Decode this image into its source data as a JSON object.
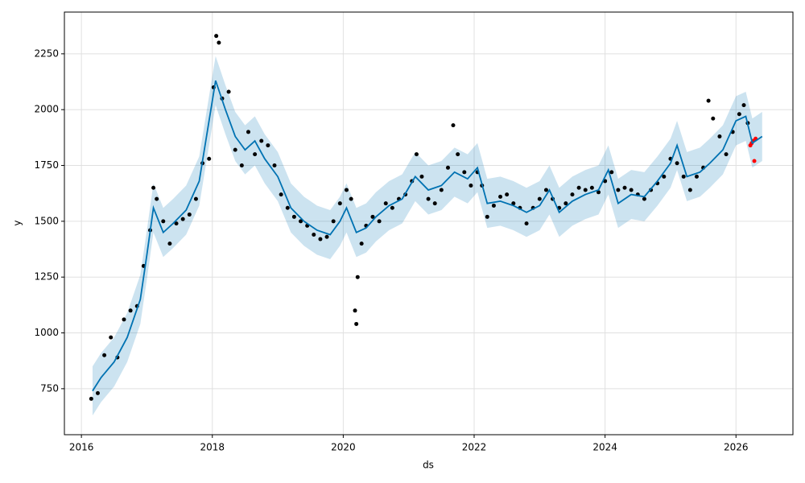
{
  "chart_data": {
    "type": "forecast",
    "x_label": "ds",
    "y_label": "y",
    "xlim": [
      2015.74,
      2026.87
    ],
    "ylim": [
      544,
      2437
    ],
    "xticks": [
      2016,
      2018,
      2020,
      2022,
      2024,
      2026
    ],
    "yticks": [
      750,
      1000,
      1250,
      1500,
      1750,
      2000,
      2250
    ],
    "grid": true,
    "forecast": {
      "color": "#0072B2",
      "band_color": "#0072B2",
      "x": [
        2016.17,
        2016.3,
        2016.5,
        2016.7,
        2016.9,
        2017.0,
        2017.1,
        2017.25,
        2017.4,
        2017.6,
        2017.8,
        2017.95,
        2018.05,
        2018.2,
        2018.35,
        2018.5,
        2018.65,
        2018.8,
        2019.0,
        2019.2,
        2019.4,
        2019.6,
        2019.8,
        2019.95,
        2020.05,
        2020.2,
        2020.35,
        2020.5,
        2020.7,
        2020.9,
        2021.1,
        2021.3,
        2021.5,
        2021.7,
        2021.9,
        2022.05,
        2022.2,
        2022.4,
        2022.6,
        2022.8,
        2023.0,
        2023.15,
        2023.3,
        2023.5,
        2023.7,
        2023.9,
        2024.05,
        2024.2,
        2024.4,
        2024.6,
        2024.8,
        2025.0,
        2025.1,
        2025.25,
        2025.45,
        2025.6,
        2025.8,
        2026.0,
        2026.15,
        2026.25,
        2026.4
      ],
      "values": [
        740,
        800,
        870,
        980,
        1150,
        1350,
        1560,
        1450,
        1490,
        1550,
        1680,
        1950,
        2130,
        2000,
        1880,
        1820,
        1860,
        1780,
        1700,
        1560,
        1500,
        1460,
        1440,
        1500,
        1560,
        1450,
        1470,
        1520,
        1570,
        1600,
        1700,
        1640,
        1660,
        1720,
        1690,
        1740,
        1580,
        1590,
        1570,
        1540,
        1570,
        1640,
        1540,
        1590,
        1620,
        1640,
        1730,
        1580,
        1620,
        1610,
        1680,
        1760,
        1840,
        1700,
        1720,
        1760,
        1820,
        1950,
        1970,
        1850,
        1880
      ],
      "lower": [
        630,
        690,
        760,
        870,
        1040,
        1240,
        1450,
        1340,
        1380,
        1440,
        1570,
        1840,
        2020,
        1890,
        1770,
        1710,
        1750,
        1670,
        1590,
        1450,
        1390,
        1350,
        1330,
        1390,
        1450,
        1340,
        1360,
        1410,
        1460,
        1490,
        1590,
        1530,
        1550,
        1610,
        1580,
        1630,
        1470,
        1480,
        1460,
        1430,
        1460,
        1530,
        1430,
        1480,
        1510,
        1530,
        1620,
        1470,
        1510,
        1500,
        1570,
        1650,
        1730,
        1590,
        1610,
        1650,
        1710,
        1840,
        1860,
        1740,
        1770
      ],
      "upper": [
        850,
        910,
        980,
        1090,
        1260,
        1460,
        1670,
        1560,
        1600,
        1660,
        1790,
        2060,
        2240,
        2110,
        1990,
        1930,
        1970,
        1890,
        1810,
        1670,
        1610,
        1570,
        1550,
        1610,
        1670,
        1560,
        1580,
        1630,
        1680,
        1710,
        1810,
        1750,
        1770,
        1830,
        1800,
        1850,
        1690,
        1700,
        1680,
        1650,
        1680,
        1750,
        1650,
        1700,
        1730,
        1750,
        1840,
        1690,
        1730,
        1720,
        1790,
        1870,
        1950,
        1810,
        1830,
        1870,
        1930,
        2060,
        2080,
        1960,
        1990
      ]
    },
    "history": {
      "color": "#000000",
      "x": [
        2016.15,
        2016.25,
        2016.35,
        2016.45,
        2016.55,
        2016.65,
        2016.75,
        2016.85,
        2016.95,
        2017.05,
        2017.1,
        2017.15,
        2017.25,
        2017.35,
        2017.45,
        2017.55,
        2017.65,
        2017.75,
        2017.85,
        2017.95,
        2018.02,
        2018.06,
        2018.1,
        2018.15,
        2018.25,
        2018.35,
        2018.45,
        2018.55,
        2018.65,
        2018.75,
        2018.85,
        2018.95,
        2019.05,
        2019.15,
        2019.25,
        2019.35,
        2019.45,
        2019.55,
        2019.65,
        2019.75,
        2019.85,
        2019.95,
        2020.05,
        2020.12,
        2020.18,
        2020.2,
        2020.22,
        2020.28,
        2020.35,
        2020.45,
        2020.55,
        2020.65,
        2020.75,
        2020.85,
        2020.95,
        2021.05,
        2021.12,
        2021.2,
        2021.3,
        2021.4,
        2021.5,
        2021.6,
        2021.68,
        2021.75,
        2021.85,
        2021.95,
        2022.05,
        2022.12,
        2022.2,
        2022.3,
        2022.4,
        2022.5,
        2022.6,
        2022.7,
        2022.8,
        2022.9,
        2023.0,
        2023.1,
        2023.2,
        2023.3,
        2023.4,
        2023.5,
        2023.6,
        2023.7,
        2023.8,
        2023.9,
        2024.0,
        2024.1,
        2024.2,
        2024.3,
        2024.4,
        2024.5,
        2024.6,
        2024.7,
        2024.8,
        2024.9,
        2025.0,
        2025.1,
        2025.2,
        2025.3,
        2025.4,
        2025.5,
        2025.58,
        2025.65,
        2025.75,
        2025.85,
        2025.95,
        2026.05,
        2026.12,
        2026.18
      ],
      "values": [
        705,
        730,
        900,
        980,
        890,
        1060,
        1100,
        1120,
        1300,
        1460,
        1650,
        1600,
        1500,
        1400,
        1490,
        1510,
        1530,
        1600,
        1760,
        1780,
        2100,
        2330,
        2300,
        2050,
        2080,
        1820,
        1750,
        1900,
        1800,
        1860,
        1840,
        1750,
        1620,
        1560,
        1520,
        1500,
        1480,
        1440,
        1420,
        1430,
        1500,
        1580,
        1640,
        1600,
        1100,
        1040,
        1250,
        1400,
        1480,
        1520,
        1500,
        1580,
        1560,
        1600,
        1620,
        1680,
        1800,
        1700,
        1600,
        1580,
        1640,
        1740,
        1930,
        1800,
        1720,
        1660,
        1720,
        1660,
        1520,
        1570,
        1610,
        1620,
        1580,
        1560,
        1490,
        1560,
        1600,
        1640,
        1600,
        1560,
        1580,
        1620,
        1650,
        1640,
        1650,
        1630,
        1680,
        1720,
        1640,
        1650,
        1640,
        1620,
        1600,
        1640,
        1670,
        1700,
        1780,
        1760,
        1700,
        1640,
        1700,
        1740,
        2040,
        1960,
        1880,
        1800,
        1900,
        1980,
        2020,
        1940
      ]
    },
    "actual": {
      "color": "#ff0000",
      "x": [
        2026.22,
        2026.24,
        2026.26,
        2026.28,
        2026.3
      ],
      "values": [
        1840,
        1850,
        1860,
        1770,
        1870
      ]
    }
  }
}
